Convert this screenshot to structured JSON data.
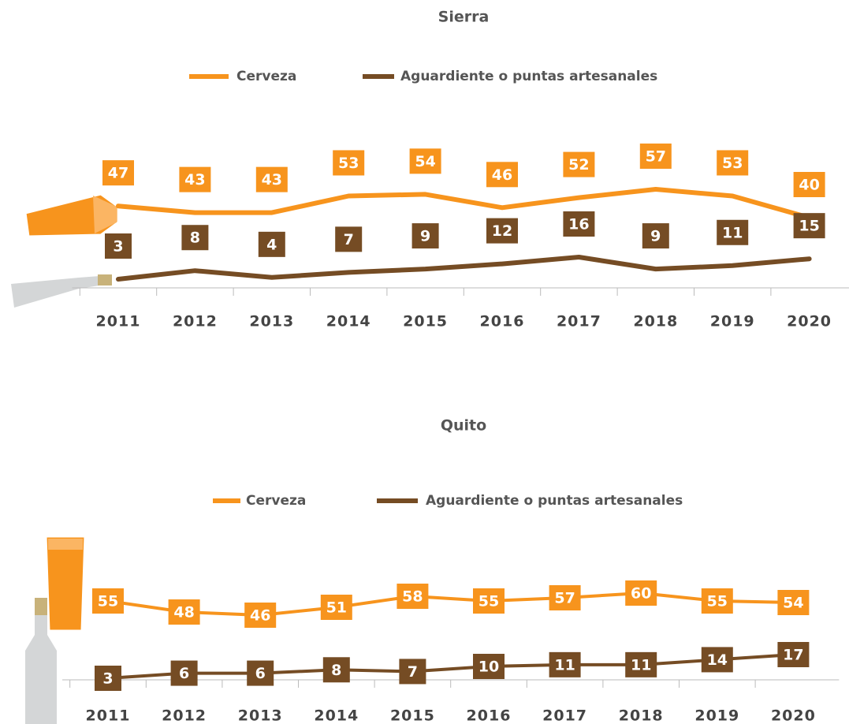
{
  "chart_data": [
    {
      "type": "line",
      "title": "Sierra",
      "categories": [
        "2011",
        "2012",
        "2013",
        "2014",
        "2015",
        "2016",
        "2017",
        "2018",
        "2019",
        "2020"
      ],
      "series": [
        {
          "name": "Cerveza",
          "color": "#f7941d",
          "values": [
            47,
            43,
            43,
            53,
            54,
            46,
            52,
            57,
            53,
            40
          ]
        },
        {
          "name": "Aguardiente o puntas artesanales",
          "color": "#754c24",
          "values": [
            3,
            8,
            4,
            7,
            9,
            12,
            16,
            9,
            11,
            15
          ]
        }
      ]
    },
    {
      "type": "line",
      "title": "Quito",
      "categories": [
        "2011",
        "2012",
        "2013",
        "2014",
        "2015",
        "2016",
        "2017",
        "2018",
        "2019",
        "2020"
      ],
      "series": [
        {
          "name": "Cerveza",
          "color": "#f7941d",
          "values": [
            55,
            48,
            46,
            51,
            58,
            55,
            57,
            60,
            55,
            54
          ]
        },
        {
          "name": "Aguardiente o puntas artesanales",
          "color": "#754c24",
          "values": [
            3,
            6,
            6,
            8,
            7,
            10,
            11,
            11,
            14,
            17
          ]
        }
      ]
    }
  ]
}
